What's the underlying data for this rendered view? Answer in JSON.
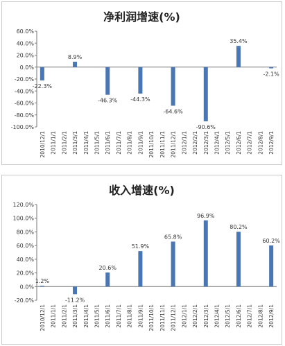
{
  "chart_data": [
    {
      "type": "bar",
      "title": "净利润增速(%)",
      "categories": [
        "2010/12/1",
        "2011/1/1",
        "2011/2/1",
        "2011/3/1",
        "2011/4/1",
        "2011/5/1",
        "2011/6/1",
        "2011/7/1",
        "2011/8/1",
        "2011/9/1",
        "2011/10/1",
        "2011/11/1",
        "2011/12/1",
        "2012/1/1",
        "2012/2/1",
        "2012/3/1",
        "2012/4/1",
        "2012/5/1",
        "2012/6/1",
        "2012/7/1",
        "2012/8/1",
        "2012/9/1"
      ],
      "values": [
        -22.3,
        null,
        null,
        8.9,
        null,
        null,
        -46.3,
        null,
        null,
        -44.3,
        null,
        null,
        -64.6,
        null,
        null,
        -90.6,
        null,
        null,
        35.4,
        null,
        null,
        -2.1
      ],
      "data_labels": [
        "-22.3%",
        "",
        "",
        "8.9%",
        "",
        "",
        "-46.3%",
        "",
        "",
        "-44.3%",
        "",
        "",
        "-64.6%",
        "",
        "",
        "-90.6%",
        "",
        "",
        "35.4%",
        "",
        "",
        "-2.1%"
      ],
      "y_ticks": [
        "60.0%",
        "40.0%",
        "20.0%",
        "0.0%",
        "-20.0%",
        "-40.0%",
        "-60.0%",
        "-80.0%",
        "-100.0%"
      ],
      "ylim": [
        -100,
        60
      ],
      "grid": false,
      "bar_color": "#4a76b4"
    },
    {
      "type": "bar",
      "title": "收入增速(%)",
      "categories": [
        "2010/12/1",
        "2011/1/1",
        "2011/2/1",
        "2011/3/1",
        "2011/4/1",
        "2011/5/1",
        "2011/6/1",
        "2011/7/1",
        "2011/8/1",
        "2011/9/1",
        "2011/10/1",
        "2011/11/1",
        "2011/12/1",
        "2012/1/1",
        "2012/2/1",
        "2012/3/1",
        "2012/4/1",
        "2012/5/1",
        "2012/6/1",
        "2012/7/1",
        "2012/8/1",
        "2012/9/1"
      ],
      "values": [
        1.2,
        null,
        null,
        -11.2,
        null,
        null,
        20.6,
        null,
        null,
        51.9,
        null,
        null,
        65.8,
        null,
        null,
        96.9,
        null,
        null,
        80.2,
        null,
        null,
        60.2
      ],
      "data_labels": [
        "1.2%",
        "",
        "",
        "-11.2%",
        "",
        "",
        "20.6%",
        "",
        "",
        "51.9%",
        "",
        "",
        "65.8%",
        "",
        "",
        "96.9%",
        "",
        "",
        "80.2%",
        "",
        "",
        "60.2%"
      ],
      "y_ticks": [
        "120.0%",
        "100.0%",
        "80.0%",
        "60.0%",
        "40.0%",
        "20.0%",
        "0.0%",
        "-20.0%"
      ],
      "ylim": [
        -20,
        120
      ],
      "grid": false,
      "bar_color": "#4a76b4"
    }
  ]
}
